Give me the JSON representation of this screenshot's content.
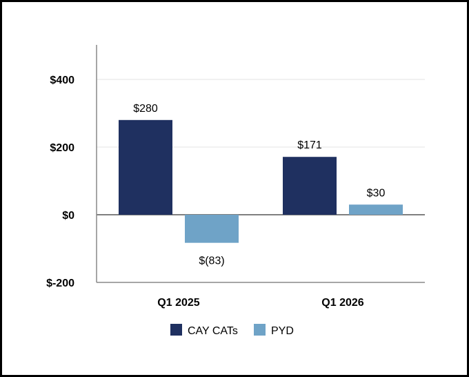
{
  "chart_data": {
    "type": "bar",
    "categories": [
      "Q1 2025",
      "Q1 2026"
    ],
    "series": [
      {
        "name": "CAY CATs",
        "values": [
          280,
          171
        ],
        "labels": [
          "$280",
          "$171"
        ],
        "color": "#1f3060"
      },
      {
        "name": "PYD",
        "values": [
          -83,
          30
        ],
        "labels": [
          "$(83)",
          "$30"
        ],
        "color": "#6fa3c7"
      }
    ],
    "yticks": [
      {
        "value": 400,
        "label": "$400"
      },
      {
        "value": 200,
        "label": "$200"
      },
      {
        "value": 0,
        "label": "$0"
      },
      {
        "value": -200,
        "label": "$-200"
      }
    ],
    "ylim": [
      -200,
      500
    ],
    "grid": true,
    "legend": "bottom"
  }
}
